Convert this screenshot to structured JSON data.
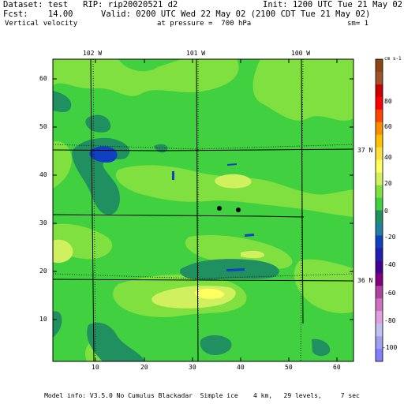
{
  "header": {
    "dataset": "Dataset: test   RIP: rip20020521 d2",
    "init": "Init: 1200 UTC Tue 21 May 02",
    "fcst": "Fcst:    14.00",
    "valid": "Valid: 0200 UTC Wed 22 May 02 (2100 CDT Tue 21 May 02)",
    "field": "Vertical velocity",
    "pressure": "at pressure =  700 hPa",
    "smoothing": "sm= 1"
  },
  "map": {
    "x_ticks": [
      "10",
      "20",
      "30",
      "40",
      "50",
      "60"
    ],
    "y_ticks": [
      "10",
      "20",
      "30",
      "40",
      "50",
      "60"
    ],
    "longitude_labels": [
      "102 W",
      "101 W",
      "100 W"
    ],
    "latitude_labels": [
      "37 N",
      "36 N"
    ],
    "x_range": [
      1,
      64
    ],
    "y_range": [
      1,
      64
    ]
  },
  "colorbar": {
    "unit": "cm s-1",
    "labels": [
      "80",
      "60",
      "40",
      "20",
      "0",
      "-20",
      "-40",
      "-60",
      "-80",
      "-100"
    ],
    "colors": [
      "#8b4513",
      "#a0522d",
      "#cc0000",
      "#ff0000",
      "#ff4500",
      "#ff8c00",
      "#ffc000",
      "#ffe040",
      "#ffff60",
      "#d0f060",
      "#80e040",
      "#40d040",
      "#209060",
      "#2080a0",
      "#1040c0",
      "#2020b0",
      "#400090",
      "#800080",
      "#b040a0",
      "#d070c0",
      "#e0a0e0",
      "#c0c0f0",
      "#a0a0f0",
      "#8080ff"
    ]
  },
  "footer": {
    "model_info": "Model info: V3.5.0 No Cumulus Blackadar  Simple ice    4 km,   29 levels,     7 sec"
  },
  "colors": {
    "base_green": "#40d040",
    "light_green": "#80e040",
    "yellow_green": "#d0f060",
    "teal": "#209060",
    "blue": "#1040c0"
  }
}
